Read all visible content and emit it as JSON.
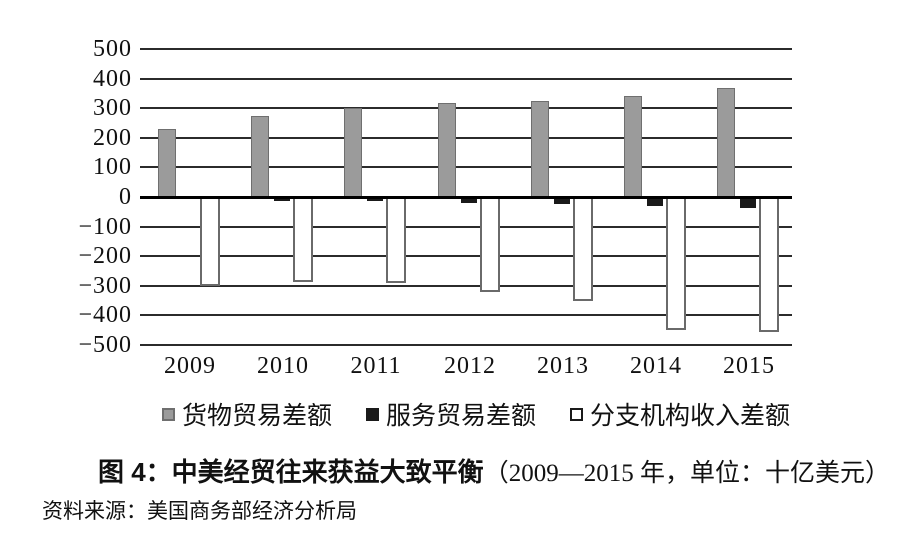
{
  "figure": {
    "caption_bold": "图 4：中美经贸往来获益大致平衡",
    "caption_note": "（2009—2015 年，单位：十亿美元）",
    "source": "资料来源：美国商务部经济分析局"
  },
  "chart_data": {
    "type": "bar",
    "title": "图 4：中美经贸往来获益大致平衡（2009—2015 年，单位：十亿美元）",
    "categories": [
      "2009",
      "2010",
      "2011",
      "2012",
      "2013",
      "2014",
      "2015"
    ],
    "series": [
      {
        "name": "货物贸易差额",
        "style": "gray",
        "values": [
          230,
          275,
          300,
          318,
          323,
          342,
          368
        ]
      },
      {
        "name": "服务贸易差额",
        "style": "black",
        "values": [
          -8,
          -13,
          -15,
          -20,
          -25,
          -32,
          -38
        ]
      },
      {
        "name": "分支机构收入差额",
        "style": "white",
        "values": [
          -300,
          -287,
          -290,
          -321,
          -350,
          -450,
          -455
        ]
      }
    ],
    "ylim": [
      -500,
      500
    ],
    "yticks": [
      500,
      400,
      300,
      200,
      100,
      0,
      -100,
      -200,
      -300,
      -400,
      -500
    ],
    "grid": true,
    "legend_position": "bottom",
    "unit": "十亿美元"
  },
  "colors": {
    "bar_gray": "#9b9b9b",
    "bar_gray_border": "#6f6f6f",
    "bar_black": "#1a1a1a",
    "bar_white_border": "#6a6a6a",
    "grid": "#2b2b2b",
    "axis": "#000000"
  }
}
